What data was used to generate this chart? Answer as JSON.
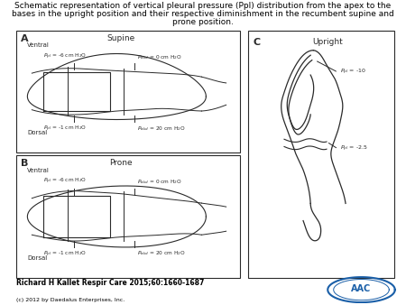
{
  "title_line1": "Schematic representation of vertical pleural pressure (Ppl) distribution from the apex to the",
  "title_line2": "bases in the upright position and their respective diminishment in the recumbent supine and",
  "title_line3": "prone position.",
  "title_fontsize": 6.5,
  "citation": "Richard H Kallet Respir Care 2015;60:1660-1687",
  "copyright": "(c) 2012 by Daedalus Enterprises, Inc.",
  "panel_A_label": "A",
  "panel_B_label": "B",
  "panel_C_label": "C",
  "panel_A_title": "Supine",
  "panel_B_title": "Prone",
  "panel_C_title": "Upright",
  "ventral": "Ventral",
  "dorsal": "Dorsal",
  "line_color": "#2a2a2a",
  "bg_color": "#ffffff"
}
